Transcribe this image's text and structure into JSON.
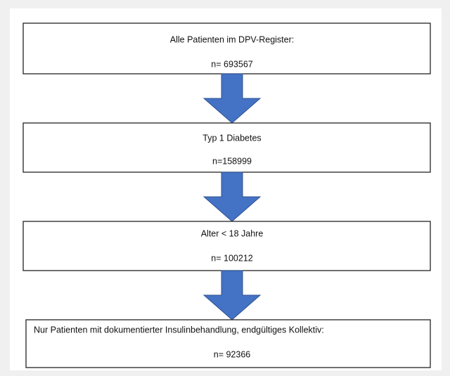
{
  "nodes": [
    {
      "label": "Alle Patienten im DPV-Register:",
      "count": "n= 693567"
    },
    {
      "label": "Typ 1 Diabetes",
      "count": "n=158999"
    },
    {
      "label": "Alter < 18 Jahre",
      "count": "n= 100212"
    },
    {
      "label": "Nur Patienten mit dokumentierter Insulinbehandlung, endgültiges Kollektiv:",
      "count": "n= 92366"
    }
  ]
}
